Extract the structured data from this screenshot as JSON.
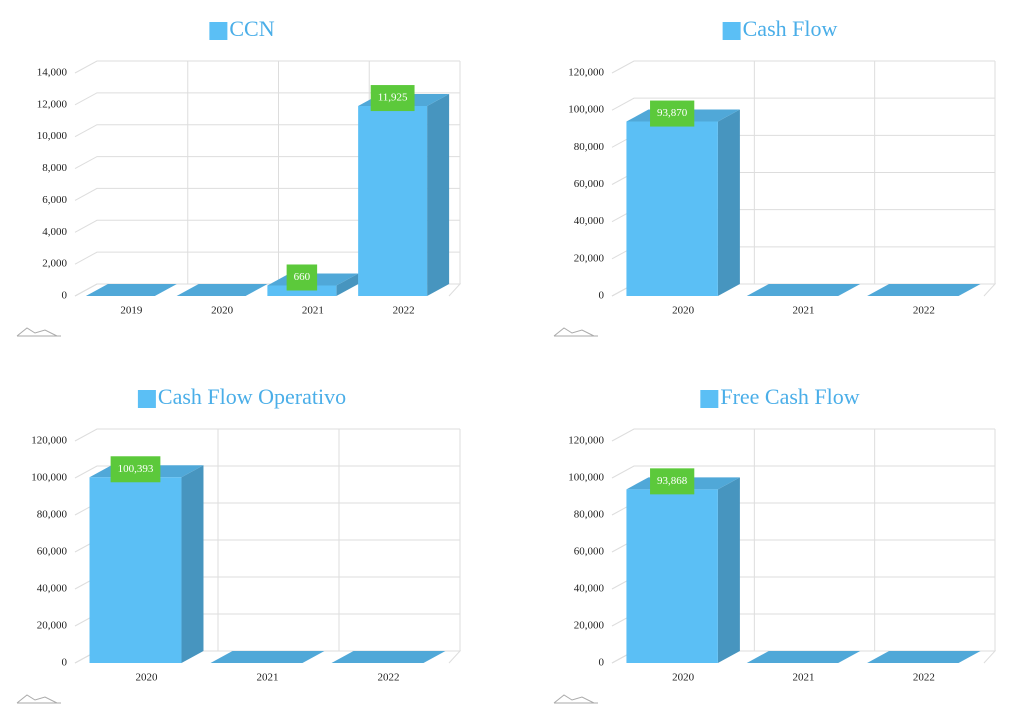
{
  "chart_data": [
    {
      "type": "bar3d",
      "title": "CCN",
      "categories": [
        "2019",
        "2020",
        "2021",
        "2022"
      ],
      "values": [
        0,
        0,
        660,
        11925
      ],
      "value_labels": [
        null,
        null,
        "660",
        "11,925"
      ],
      "color": "#5bbff5",
      "ylim": [
        0,
        14000
      ],
      "yticks": [
        0,
        {
          "value": 2000,
          "label": "2,000"
        },
        {
          "value": 4000,
          "label": "4,000"
        },
        {
          "value": 6000,
          "label": "6,000"
        },
        {
          "value": 8000,
          "label": "8,000"
        },
        {
          "value": 10000,
          "label": "10,000"
        },
        {
          "value": 12000,
          "label": "12,000"
        },
        {
          "value": 14000,
          "label": "14,000"
        }
      ],
      "grid": true
    },
    {
      "type": "bar3d",
      "title": "Cash Flow",
      "categories": [
        "2020",
        "2021",
        "2022"
      ],
      "values": [
        93870,
        0,
        0
      ],
      "value_labels": [
        "93,870",
        null,
        null
      ],
      "color": "#5bbff5",
      "ylim": [
        0,
        120000
      ],
      "yticks": [
        0,
        {
          "value": 20000,
          "label": "20,000"
        },
        {
          "value": 40000,
          "label": "40,000"
        },
        {
          "value": 60000,
          "label": "60,000"
        },
        {
          "value": 80000,
          "label": "80,000"
        },
        {
          "value": 100000,
          "label": "100,000"
        },
        {
          "value": 120000,
          "label": "120,000"
        }
      ],
      "grid": true
    },
    {
      "type": "bar3d",
      "title": "Cash Flow Operativo",
      "categories": [
        "2020",
        "2021",
        "2022"
      ],
      "values": [
        100393,
        0,
        0
      ],
      "value_labels": [
        "100,393",
        null,
        null
      ],
      "color": "#5bbff5",
      "ylim": [
        0,
        120000
      ],
      "yticks": [
        0,
        {
          "value": 20000,
          "label": "20,000"
        },
        {
          "value": 40000,
          "label": "40,000"
        },
        {
          "value": 60000,
          "label": "60,000"
        },
        {
          "value": 80000,
          "label": "80,000"
        },
        {
          "value": 100000,
          "label": "100,000"
        },
        {
          "value": 120000,
          "label": "120,000"
        }
      ],
      "grid": true
    },
    {
      "type": "bar3d",
      "title": "Free Cash Flow",
      "categories": [
        "2020",
        "2021",
        "2022"
      ],
      "values": [
        93868,
        0,
        0
      ],
      "value_labels": [
        "93,868",
        null,
        null
      ],
      "color": "#5bbff5",
      "ylim": [
        0,
        120000
      ],
      "yticks": [
        0,
        {
          "value": 20000,
          "label": "20,000"
        },
        {
          "value": 40000,
          "label": "40,000"
        },
        {
          "value": 60000,
          "label": "60,000"
        },
        {
          "value": 80000,
          "label": "80,000"
        },
        {
          "value": 100000,
          "label": "100,000"
        },
        {
          "value": 120000,
          "label": "120,000"
        }
      ],
      "grid": true
    }
  ]
}
